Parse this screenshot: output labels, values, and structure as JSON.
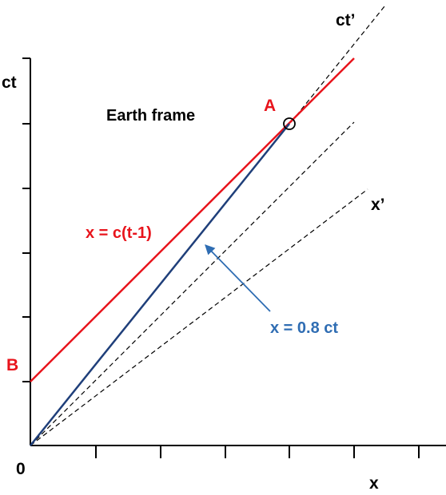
{
  "labels": {
    "ct_axis": "ct",
    "x_axis": "x",
    "origin": "0",
    "ct_prime": "ct’",
    "x_prime": "x’",
    "frame": "Earth frame",
    "point_a": "A",
    "point_b": "B",
    "red_line_eq": "x = c(t-1)",
    "blue_line_eq": "x = 0.8 ct"
  },
  "colors": {
    "red": "#e8141c",
    "blue": "#2f6db3",
    "dark_blue": "#1f3f7a",
    "black": "#000000"
  }
}
